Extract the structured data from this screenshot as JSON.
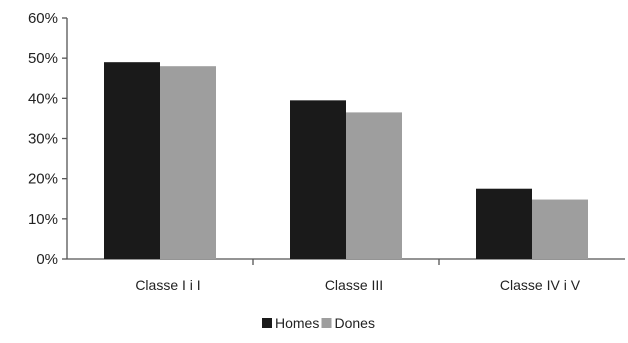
{
  "chart_data": {
    "type": "bar",
    "categories": [
      "Classe I i I",
      "Classe III",
      "Classe IV i V"
    ],
    "series": [
      {
        "name": "Homes",
        "values": [
          0.49,
          0.395,
          0.175
        ],
        "color": "#1a1a1a"
      },
      {
        "name": "Dones",
        "values": [
          0.48,
          0.365,
          0.148
        ],
        "color": "#9e9e9e"
      }
    ],
    "yticks": [
      "0%",
      "10%",
      "20%",
      "30%",
      "40%",
      "50%",
      "60%"
    ],
    "ylim": [
      0,
      0.6
    ],
    "title": "",
    "xlabel": "",
    "ylabel": "",
    "grid": false,
    "legend_position": "bottom-center"
  }
}
